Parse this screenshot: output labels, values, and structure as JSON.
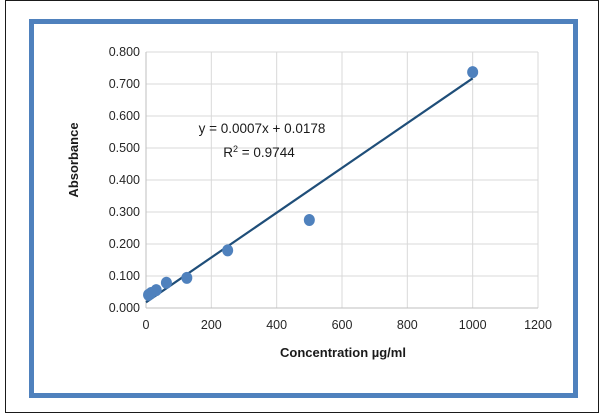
{
  "chart_data": {
    "type": "scatter",
    "xlabel": "Concentration µg/ml",
    "ylabel": "Absorbance",
    "xlim": [
      0,
      1200
    ],
    "ylim": [
      0,
      0.8
    ],
    "x_ticks": [
      "0",
      "200",
      "400",
      "600",
      "800",
      "1000",
      "1200"
    ],
    "y_ticks": [
      "0.000",
      "0.100",
      "0.200",
      "0.300",
      "0.400",
      "0.500",
      "0.600",
      "0.700",
      "0.800"
    ],
    "grid": "major gridlines on both axes",
    "legend": "none",
    "series": [
      {
        "x": [
          7.8,
          15.6,
          31.25,
          62.5,
          125,
          250,
          500,
          1000
        ],
        "y": [
          0.041,
          0.047,
          0.056,
          0.079,
          0.094,
          0.18,
          0.275,
          0.737
        ],
        "marker_color": "#4f81bd"
      }
    ],
    "trendline": {
      "type": "linear",
      "slope": 0.0007,
      "intercept": 0.0178,
      "x_range": [
        0,
        1000
      ],
      "color": "#1f4e79",
      "equation": "y = 0.0007x + 0.0178",
      "r2_prefix": "R",
      "r2_suffix": " = 0.9744"
    }
  },
  "colors": {
    "frame_border": "#4f81bd",
    "grid": "#d9d9d9",
    "axis": "#bfbfbf"
  }
}
